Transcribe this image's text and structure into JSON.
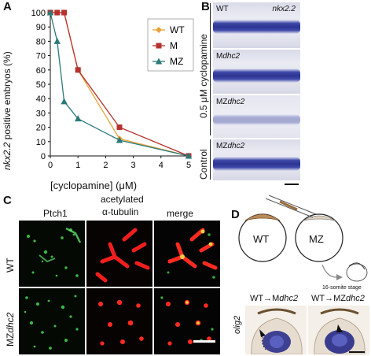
{
  "panels": {
    "A": "A",
    "B": "B",
    "C": "C",
    "D": "D"
  },
  "chart_data": {
    "type": "line",
    "xlabel": "[cyclopamine] (μM)",
    "ylabel_italic": "nkx2.2",
    "ylabel_rest": " positive embryos (%)",
    "xlim": [
      0,
      5
    ],
    "ylim": [
      0,
      100
    ],
    "xticks": [
      "0",
      "1",
      "2",
      "3",
      "4",
      "5"
    ],
    "yticks": [
      "0",
      "10",
      "20",
      "30",
      "40",
      "50",
      "60",
      "70",
      "80",
      "90",
      "100"
    ],
    "legend_position": "top-right",
    "series": [
      {
        "name": "WT",
        "color": "#e8a33c",
        "marker": "diamond",
        "x": [
          0,
          0.25,
          0.5,
          1,
          2.5,
          5
        ],
        "y": [
          100,
          100,
          100,
          60,
          12,
          0
        ]
      },
      {
        "name": "M",
        "color": "#b5322f",
        "marker": "square",
        "x": [
          0,
          0.25,
          0.5,
          1,
          2.5,
          5
        ],
        "y": [
          100,
          100,
          100,
          60,
          20,
          0
        ]
      },
      {
        "name": "MZ",
        "color": "#2b7a78",
        "marker": "triangle",
        "x": [
          0,
          0.25,
          0.5,
          1,
          2.5,
          5
        ],
        "y": [
          100,
          80,
          38,
          26,
          11,
          0
        ]
      }
    ]
  },
  "panelB": {
    "gene": "nkx2.2",
    "rows": [
      {
        "prefix": "WT",
        "italic": ""
      },
      {
        "prefix": "M",
        "italic": "dhc2"
      },
      {
        "prefix": "MZ",
        "italic": "dhc2"
      },
      {
        "prefix": "MZ",
        "italic": "dhc2"
      }
    ],
    "treatment": "0.5 μM cyclopamine",
    "control": "Control"
  },
  "panelC": {
    "headers": {
      "ptch": "Ptch1",
      "tub1": "acetylated",
      "tub2": "α-tubulin",
      "merge": "merge"
    },
    "row1": "WT",
    "row2_prefix": "MZ",
    "row2_italic": "dhc2"
  },
  "panelD": {
    "wt": "WT",
    "mz": "MZ",
    "stage": "16-somite stage",
    "left_label_prefix": "WT→M",
    "left_label_italic": "dhc2",
    "right_label_prefix": "WT→MZ",
    "right_label_italic": "dhc2",
    "olig": "olig2"
  }
}
